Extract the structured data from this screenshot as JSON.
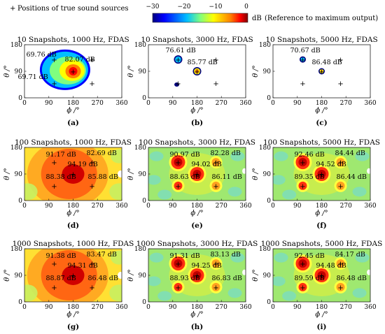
{
  "legend": {
    "source_marker": "+",
    "source_label": "Positions of true sound sources",
    "colorbar_ticks": [
      "−30",
      "−20",
      "−10",
      "0"
    ],
    "colorbar_unit": "dB",
    "colorbar_note": "(Reference to maximum output)"
  },
  "colors": {
    "colormap": [
      "#00007f",
      "#0000ff",
      "#00bfff",
      "#7fff7f",
      "#ffff00",
      "#ff7f00",
      "#ff0000",
      "#7f0000"
    ],
    "background_low": "#ffffff"
  },
  "axes": {
    "xlabel": "ϕ /°",
    "ylabel": "θ /°",
    "xticks": [
      "0",
      "90",
      "180",
      "270",
      "360"
    ],
    "yticks": [
      "0",
      "90",
      "180"
    ],
    "xlim": [
      0,
      360
    ],
    "ylim": [
      0,
      180
    ],
    "colorbar_range_db": [
      -30,
      0
    ]
  },
  "sources": [
    [
      180,
      90
    ],
    [
      110,
      130
    ],
    [
      250,
      130
    ],
    [
      110,
      50
    ],
    [
      250,
      50
    ]
  ],
  "chart_data": [
    {
      "type": "heatmap",
      "title": "10 Snapshots, 1000 Hz, FDAS",
      "panel": "(a)",
      "snapshots": 10,
      "frequency_hz": 1000,
      "peaks": [
        {
          "x": 180,
          "y": 90,
          "label": "82.07 dB",
          "value_db": 82.07
        },
        {
          "x": 110,
          "y": 130,
          "label": "69.76 dB",
          "value_db": 69.76
        },
        {
          "x": 110,
          "y": 50,
          "label": "69.71 dB",
          "value_db": 69.71
        }
      ]
    },
    {
      "type": "heatmap",
      "title": "10 Snapshots, 3000 Hz, FDAS",
      "panel": "(b)",
      "snapshots": 10,
      "frequency_hz": 3000,
      "peaks": [
        {
          "x": 110,
          "y": 130,
          "label": "76.61 dB",
          "value_db": 76.61
        },
        {
          "x": 180,
          "y": 90,
          "label": "85.77 dB",
          "value_db": 85.77
        }
      ]
    },
    {
      "type": "heatmap",
      "title": "10 Snapshots, 5000 Hz, FDAS",
      "panel": "(c)",
      "snapshots": 10,
      "frequency_hz": 5000,
      "peaks": [
        {
          "x": 110,
          "y": 130,
          "label": "70.67 dB",
          "value_db": 70.67
        },
        {
          "x": 180,
          "y": 90,
          "label": "86.48 dB",
          "value_db": 86.48
        }
      ]
    },
    {
      "type": "heatmap",
      "title": "100 Snapshots, 1000 Hz, FDAS",
      "panel": "(d)",
      "snapshots": 100,
      "frequency_hz": 1000,
      "peaks": [
        {
          "x": 110,
          "y": 130,
          "label": "91.17 dB",
          "value_db": 91.17
        },
        {
          "x": 250,
          "y": 130,
          "label": "82.69 dB",
          "value_db": 82.69
        },
        {
          "x": 180,
          "y": 90,
          "label": "94.19 dB",
          "value_db": 94.19
        },
        {
          "x": 110,
          "y": 50,
          "label": "88.38 dB",
          "value_db": 88.38
        },
        {
          "x": 250,
          "y": 50,
          "label": "85.88 dB",
          "value_db": 85.88
        }
      ]
    },
    {
      "type": "heatmap",
      "title": "100 Snapshots, 3000 Hz, FDAS",
      "panel": "(e)",
      "snapshots": 100,
      "frequency_hz": 3000,
      "peaks": [
        {
          "x": 110,
          "y": 130,
          "label": "90.97 dB",
          "value_db": 90.97
        },
        {
          "x": 250,
          "y": 130,
          "label": "82.28 dB",
          "value_db": 82.28
        },
        {
          "x": 180,
          "y": 90,
          "label": "94.02 dB",
          "value_db": 94.02
        },
        {
          "x": 110,
          "y": 50,
          "label": "88.63 dB",
          "value_db": 88.63
        },
        {
          "x": 250,
          "y": 50,
          "label": "86.11 dB",
          "value_db": 86.11
        }
      ]
    },
    {
      "type": "heatmap",
      "title": "100 Snapshots, 5000 Hz, FDAS",
      "panel": "(f)",
      "snapshots": 100,
      "frequency_hz": 5000,
      "peaks": [
        {
          "x": 110,
          "y": 130,
          "label": "92.46 dB",
          "value_db": 92.46
        },
        {
          "x": 250,
          "y": 130,
          "label": "84.44 dB",
          "value_db": 84.44
        },
        {
          "x": 180,
          "y": 90,
          "label": "94.52 dB",
          "value_db": 94.52
        },
        {
          "x": 110,
          "y": 50,
          "label": "89.35 dB",
          "value_db": 89.35
        },
        {
          "x": 250,
          "y": 50,
          "label": "86.44 dB",
          "value_db": 86.44
        }
      ]
    },
    {
      "type": "heatmap",
      "title": "1000 Snapshots, 1000 Hz, FDAS",
      "panel": "(g)",
      "snapshots": 1000,
      "frequency_hz": 1000,
      "peaks": [
        {
          "x": 110,
          "y": 130,
          "label": "91.38 dB",
          "value_db": 91.38
        },
        {
          "x": 250,
          "y": 130,
          "label": "83.47 dB",
          "value_db": 83.47
        },
        {
          "x": 180,
          "y": 90,
          "label": "94.31 dB",
          "value_db": 94.31
        },
        {
          "x": 110,
          "y": 50,
          "label": "88.87 dB",
          "value_db": 88.87
        },
        {
          "x": 250,
          "y": 50,
          "label": "86.48 dB",
          "value_db": 86.48
        }
      ]
    },
    {
      "type": "heatmap",
      "title": "1000 Snapshots, 3000 Hz, FDAS",
      "panel": "(h)",
      "snapshots": 1000,
      "frequency_hz": 3000,
      "peaks": [
        {
          "x": 110,
          "y": 130,
          "label": "91.31 dB",
          "value_db": 91.31
        },
        {
          "x": 250,
          "y": 130,
          "label": "83.13 dB",
          "value_db": 83.13
        },
        {
          "x": 180,
          "y": 90,
          "label": "94.25 dB",
          "value_db": 94.25
        },
        {
          "x": 110,
          "y": 50,
          "label": "88.93 dB",
          "value_db": 88.93
        },
        {
          "x": 250,
          "y": 50,
          "label": "86.83 dB",
          "value_db": 86.83
        }
      ]
    },
    {
      "type": "heatmap",
      "title": "1000 Snapshots, 5000 Hz, FDAS",
      "panel": "(i)",
      "snapshots": 1000,
      "frequency_hz": 5000,
      "peaks": [
        {
          "x": 110,
          "y": 130,
          "label": "92.45 dB",
          "value_db": 92.45
        },
        {
          "x": 250,
          "y": 130,
          "label": "84.17 dB",
          "value_db": 84.17
        },
        {
          "x": 180,
          "y": 90,
          "label": "94.48 dB",
          "value_db": 94.48
        },
        {
          "x": 110,
          "y": 50,
          "label": "89.59 dB",
          "value_db": 89.59
        },
        {
          "x": 250,
          "y": 50,
          "label": "86.48 dB",
          "value_db": 86.48
        }
      ]
    }
  ]
}
